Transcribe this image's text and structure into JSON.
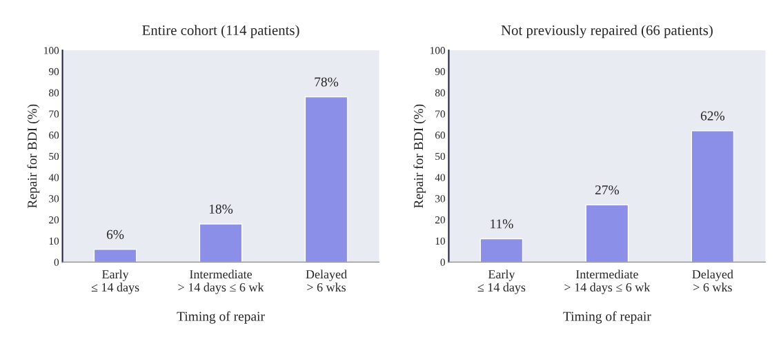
{
  "chart_data": [
    {
      "type": "bar",
      "title": "Entire cohort (114 patients)",
      "xlabel": "Timing of repair",
      "ylabel": "Repair for BDI (%)",
      "categories": [
        "Early\n≤ 14 days",
        "Intermediate\n> 14 days ≤ 6 wk",
        "Delayed\n> 6 wks"
      ],
      "values": [
        6,
        18,
        78
      ],
      "value_labels": [
        "6%",
        "18%",
        "78%"
      ],
      "color": "#8b8fe8",
      "ylim": [
        0,
        100
      ],
      "yticks": [
        0,
        10,
        20,
        30,
        40,
        50,
        60,
        70,
        80,
        90,
        100
      ]
    },
    {
      "type": "bar",
      "title": "Not previously repaired (66 patients)",
      "xlabel": "Timing of repair",
      "ylabel": "Repair for BDI (%)",
      "categories": [
        "Early\n≤ 14 days",
        "Intermediate\n> 14 days ≤ 6 wk",
        "Delayed\n> 6 wks"
      ],
      "values": [
        11,
        27,
        62
      ],
      "value_labels": [
        "11%",
        "27%",
        "62%"
      ],
      "color": "#8b8fe8",
      "ylim": [
        0,
        100
      ],
      "yticks": [
        0,
        10,
        20,
        30,
        40,
        50,
        60,
        70,
        80,
        90,
        100
      ]
    }
  ]
}
